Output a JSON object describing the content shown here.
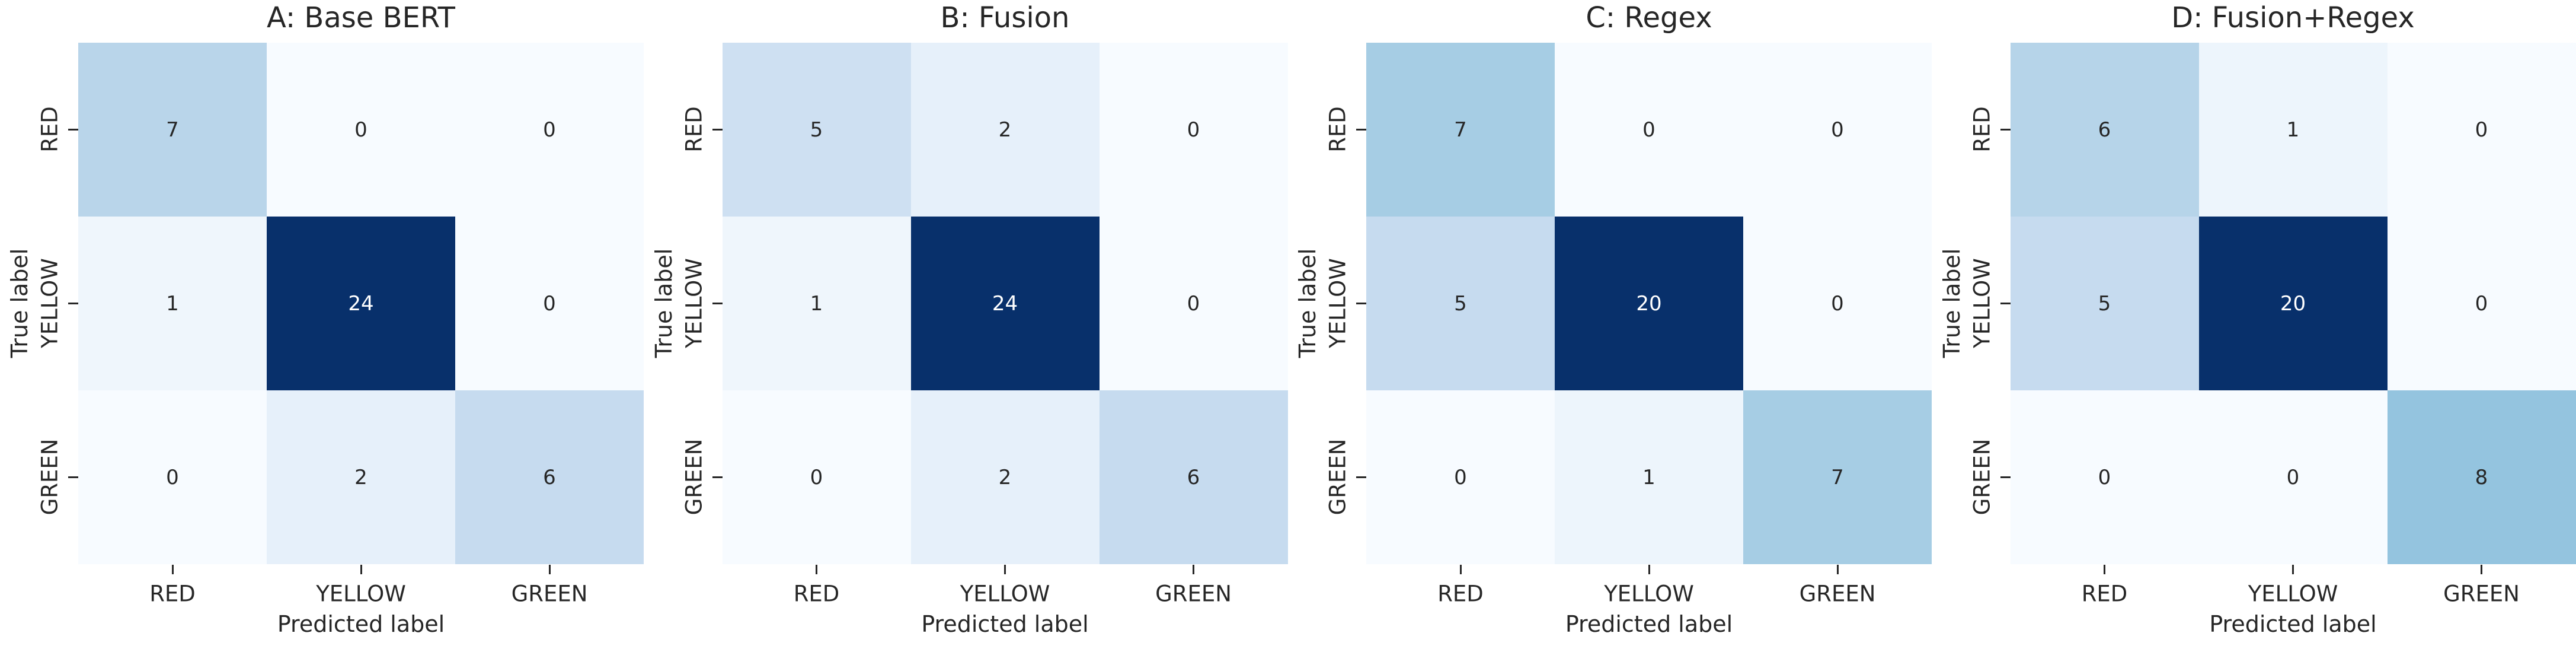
{
  "figure": {
    "type": "confusion-matrix-grid",
    "background": "#ffffff",
    "text_color": "#262626",
    "axis": {
      "xlabel": "Predicted label",
      "ylabel": "True label",
      "classes": [
        "RED",
        "YELLOW",
        "GREEN"
      ]
    },
    "colors": {
      "annot_dark": "#262626",
      "annot_light": "#ffffff",
      "colormap_name": "Blues",
      "blues_anchors": [
        "#f7fbff",
        "#deebf7",
        "#c6dbef",
        "#9ecae1",
        "#6baed6",
        "#4292c6",
        "#2171b5",
        "#08519c",
        "#08306b"
      ]
    }
  },
  "chart_data": [
    {
      "type": "heatmap",
      "title": "A: Base BERT",
      "xlabel": "Predicted label",
      "ylabel": "True label",
      "x_tick_labels": [
        "RED",
        "YELLOW",
        "GREEN"
      ],
      "y_tick_labels": [
        "RED",
        "YELLOW",
        "GREEN"
      ],
      "values": [
        [
          7,
          0,
          0
        ],
        [
          1,
          24,
          0
        ],
        [
          0,
          2,
          6
        ]
      ],
      "colormap": "Blues",
      "vmin": 0,
      "vmax": 24,
      "legend_position": "none",
      "grid": false
    },
    {
      "type": "heatmap",
      "title": "B: Fusion",
      "xlabel": "Predicted label",
      "ylabel": "True label",
      "x_tick_labels": [
        "RED",
        "YELLOW",
        "GREEN"
      ],
      "y_tick_labels": [
        "RED",
        "YELLOW",
        "GREEN"
      ],
      "values": [
        [
          5,
          2,
          0
        ],
        [
          1,
          24,
          0
        ],
        [
          0,
          2,
          6
        ]
      ],
      "colormap": "Blues",
      "vmin": 0,
      "vmax": 24,
      "legend_position": "none",
      "grid": false
    },
    {
      "type": "heatmap",
      "title": "C: Regex",
      "xlabel": "Predicted label",
      "ylabel": "True label",
      "x_tick_labels": [
        "RED",
        "YELLOW",
        "GREEN"
      ],
      "y_tick_labels": [
        "RED",
        "YELLOW",
        "GREEN"
      ],
      "values": [
        [
          7,
          0,
          0
        ],
        [
          5,
          20,
          0
        ],
        [
          0,
          1,
          7
        ]
      ],
      "colormap": "Blues",
      "vmin": 0,
      "vmax": 20,
      "legend_position": "none",
      "grid": false
    },
    {
      "type": "heatmap",
      "title": "D: Fusion+Regex",
      "xlabel": "Predicted label",
      "ylabel": "True label",
      "x_tick_labels": [
        "RED",
        "YELLOW",
        "GREEN"
      ],
      "y_tick_labels": [
        "RED",
        "YELLOW",
        "GREEN"
      ],
      "values": [
        [
          6,
          1,
          0
        ],
        [
          5,
          20,
          0
        ],
        [
          0,
          0,
          8
        ]
      ],
      "colormap": "Blues",
      "vmin": 0,
      "vmax": 20,
      "legend_position": "none",
      "grid": false
    }
  ]
}
